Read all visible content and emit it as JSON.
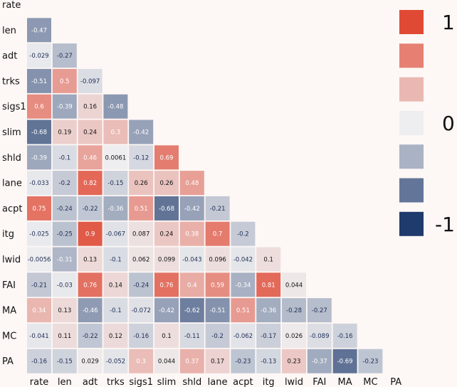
{
  "chart_data": {
    "type": "heatmap",
    "variables": [
      "rate",
      "len",
      "adt",
      "trks",
      "sigs1",
      "slim",
      "shld",
      "lane",
      "acpt",
      "itg",
      "lwid",
      "FAI",
      "MA",
      "MC",
      "PA"
    ],
    "lower_triangle": [
      [],
      [
        -0.47
      ],
      [
        -0.029,
        -0.27
      ],
      [
        -0.51,
        0.5,
        -0.097
      ],
      [
        0.6,
        -0.39,
        0.16,
        -0.48
      ],
      [
        -0.68,
        0.19,
        0.24,
        0.3,
        -0.42
      ],
      [
        -0.39,
        -0.1,
        0.46,
        0.0061,
        -0.12,
        0.69
      ],
      [
        -0.033,
        -0.2,
        0.82,
        -0.15,
        0.26,
        0.26,
        0.48
      ],
      [
        0.75,
        -0.24,
        -0.22,
        -0.36,
        0.51,
        -0.68,
        -0.42,
        -0.21
      ],
      [
        -0.025,
        -0.25,
        0.9,
        -0.067,
        0.087,
        0.24,
        0.38,
        0.7,
        -0.2
      ],
      [
        -0.0056,
        -0.31,
        0.13,
        -0.1,
        0.062,
        0.099,
        -0.043,
        0.096,
        -0.042,
        0.1
      ],
      [
        -0.21,
        -0.03,
        0.76,
        0.14,
        -0.24,
        0.76,
        0.4,
        0.59,
        -0.34,
        0.81,
        0.044
      ],
      [
        0.34,
        0.13,
        -0.46,
        -0.1,
        -0.072,
        -0.42,
        -0.62,
        -0.51,
        0.51,
        -0.36,
        -0.28,
        -0.27
      ],
      [
        -0.041,
        0.11,
        -0.22,
        0.12,
        -0.16,
        0.1,
        -0.11,
        -0.2,
        -0.062,
        -0.17,
        0.026,
        -0.089,
        -0.16
      ],
      [
        -0.16,
        -0.15,
        0.029,
        -0.052,
        0.3,
        0.044,
        0.37,
        0.17,
        -0.23,
        -0.13,
        0.23,
        -0.37,
        -0.69,
        -0.23
      ]
    ],
    "value_labels": [
      [],
      [
        "-0.47"
      ],
      [
        "-0.029",
        "-0.27"
      ],
      [
        "-0.51",
        "0.5",
        "-0.097"
      ],
      [
        "0.6",
        "-0.39",
        "0.16",
        "-0.48"
      ],
      [
        "-0.68",
        "0.19",
        "0.24",
        "0.3",
        "-0.42"
      ],
      [
        "-0.39",
        "-0.1",
        "0.46",
        "0.0061",
        "-0.12",
        "0.69"
      ],
      [
        "-0.033",
        "-0.2",
        "0.82",
        "-0.15",
        "0.26",
        "0.26",
        "0.48"
      ],
      [
        "0.75",
        "-0.24",
        "-0.22",
        "-0.36",
        "0.51",
        "-0.68",
        "-0.42",
        "-0.21"
      ],
      [
        "-0.025",
        "-0.25",
        "0.9",
        "-0.067",
        "0.087",
        "0.24",
        "0.38",
        "0.7",
        "-0.2"
      ],
      [
        "-0.0056",
        "-0.31",
        "0.13",
        "-0.1",
        "0.062",
        "0.099",
        "-0.043",
        "0.096",
        "-0.042",
        "0.1"
      ],
      [
        "-0.21",
        "-0.03",
        "0.76",
        "0.14",
        "-0.24",
        "0.76",
        "0.4",
        "0.59",
        "-0.34",
        "0.81",
        "0.044"
      ],
      [
        "0.34",
        "0.13",
        "-0.46",
        "-0.1",
        "-0.072",
        "-0.42",
        "-0.62",
        "-0.51",
        "0.51",
        "-0.36",
        "-0.28",
        "-0.27"
      ],
      [
        "-0.041",
        "0.11",
        "-0.22",
        "0.12",
        "-0.16",
        "0.1",
        "-0.11",
        "-0.2",
        "-0.062",
        "-0.17",
        "0.026",
        "-0.089",
        "-0.16"
      ],
      [
        "-0.16",
        "-0.15",
        "0.029",
        "-0.052",
        "0.3",
        "0.044",
        "0.37",
        "0.17",
        "-0.23",
        "-0.13",
        "0.23",
        "-0.37",
        "-0.69",
        "-0.23"
      ]
    ],
    "color_range": [
      -1,
      1
    ],
    "colors": {
      "negative": "#1f3a6c",
      "zero": "#eeeef0",
      "positive": "#e04a35",
      "background": "#fdf7f5"
    },
    "legend": {
      "placement": "right",
      "steps": [
        1,
        0.67,
        0.33,
        0,
        -0.33,
        -0.67,
        -1
      ],
      "tick_labels": [
        {
          "value": 1,
          "label": "1"
        },
        {
          "value": 0,
          "label": "0"
        },
        {
          "value": -1,
          "label": "-1"
        }
      ]
    }
  }
}
